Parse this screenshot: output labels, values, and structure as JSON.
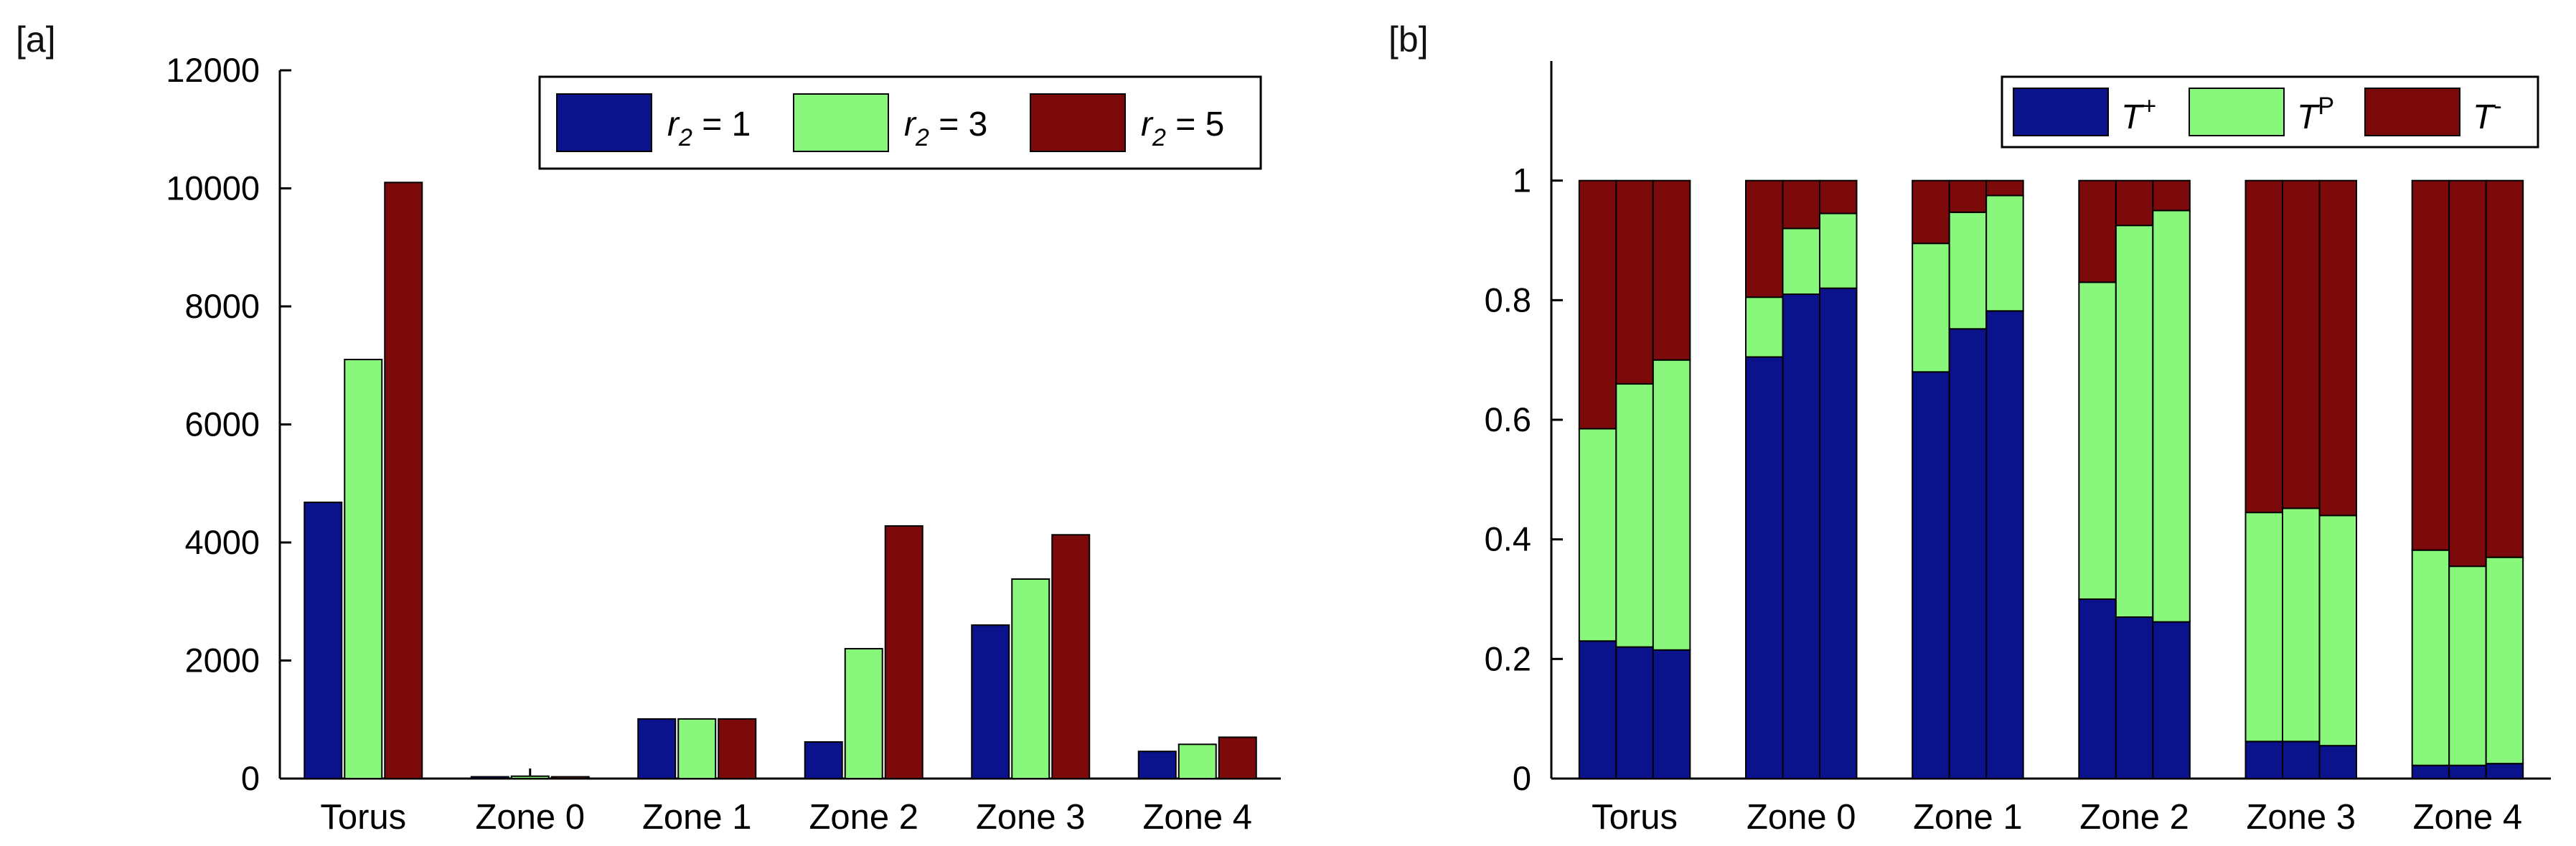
{
  "panels": [
    {
      "label": "[a]",
      "chart_data": {
        "type": "bar",
        "categories": [
          "Torus",
          "Zone 0",
          "Zone 1",
          "Zone 2",
          "Zone 3",
          "Zone 4"
        ],
        "series": [
          {
            "name_var": "r",
            "name_sub": "2",
            "name_rest": " = 1",
            "color": "#0a128c",
            "values": [
              4680,
              30,
              1010,
              620,
              2600,
              460
            ]
          },
          {
            "name_var": "r",
            "name_sub": "2",
            "name_rest": " = 3",
            "color": "#88f77c",
            "values": [
              7100,
              40,
              1010,
              2200,
              3380,
              580
            ]
          },
          {
            "name_var": "r",
            "name_sub": "2",
            "name_rest": " = 5",
            "color": "#7d0a0a",
            "values": [
              10100,
              30,
              1010,
              4280,
              4130,
              700
            ]
          }
        ],
        "ylim": [
          0,
          12000
        ],
        "yticks": [
          "0",
          "2000",
          "4000",
          "6000",
          "8000",
          "10000",
          "12000"
        ],
        "legend_position": "top-right",
        "grid": false
      }
    },
    {
      "label": "[b]",
      "chart_data": {
        "type": "bar",
        "stacked": true,
        "categories": [
          "Torus",
          "Zone 0",
          "Zone 1",
          "Zone 2",
          "Zone 3",
          "Zone 4"
        ],
        "bars_per_category": 3,
        "series": [
          {
            "name_var": "T",
            "name_sup": "+",
            "color": "#0a128c",
            "values": [
              [
                0.23,
                0.22,
                0.215
              ],
              [
                0.705,
                0.81,
                0.82
              ],
              [
                0.68,
                0.752,
                0.782
              ],
              [
                0.3,
                0.27,
                0.262
              ],
              [
                0.062,
                0.062,
                0.055
              ],
              [
                0.022,
                0.022,
                0.025
              ]
            ]
          },
          {
            "name_var": "T",
            "name_sup": "P",
            "color": "#88f77c",
            "values": [
              [
                0.355,
                0.44,
                0.485
              ],
              [
                0.1,
                0.11,
                0.125
              ],
              [
                0.215,
                0.195,
                0.193
              ],
              [
                0.53,
                0.655,
                0.688
              ],
              [
                0.383,
                0.39,
                0.385
              ],
              [
                0.36,
                0.333,
                0.345
              ]
            ]
          },
          {
            "name_var": "T",
            "name_sup": "-",
            "color": "#7d0a0a",
            "values": [
              [
                0.415,
                0.34,
                0.3
              ],
              [
                0.195,
                0.08,
                0.055
              ],
              [
                0.105,
                0.053,
                0.025
              ],
              [
                0.17,
                0.075,
                0.05
              ],
              [
                0.555,
                0.548,
                0.56
              ],
              [
                0.618,
                0.645,
                0.63
              ]
            ]
          }
        ],
        "ylim": [
          0,
          1.2
        ],
        "yticks": [
          "0",
          "0.2",
          "0.4",
          "0.6",
          "0.8",
          "1"
        ],
        "legend_position": "top-right",
        "grid": false
      }
    }
  ]
}
